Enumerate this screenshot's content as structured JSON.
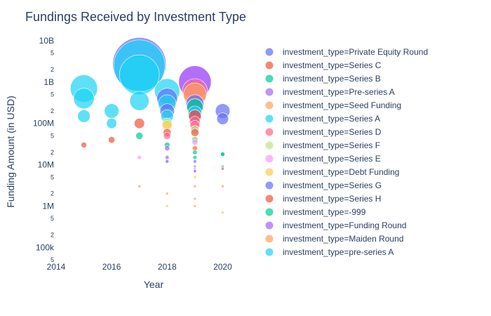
{
  "chart_data": {
    "type": "scatter",
    "title": "Fundings Received by Investment Type",
    "xlabel": "Year",
    "ylabel": "Funding Amount (in USD)",
    "x_axis": {
      "range": [
        2014,
        2021
      ],
      "ticks": [
        2014,
        2016,
        2018,
        2020
      ],
      "tick_labels": [
        "2014",
        "2016",
        "2018",
        "2020"
      ]
    },
    "y_axis": {
      "scale": "log",
      "range": [
        50000,
        10000000000
      ],
      "major_ticks": [
        100000,
        1000000,
        10000000,
        100000000,
        1000000000,
        10000000000
      ],
      "major_labels": [
        "100k",
        "1M",
        "10M",
        "100M",
        "1B",
        "10B"
      ],
      "minor_ticks": [
        50000,
        200000,
        500000,
        2000000,
        5000000,
        20000000,
        50000000,
        200000000,
        500000000,
        2000000000,
        5000000000
      ],
      "minor_labels": [
        "5",
        "2",
        "5",
        "2",
        "5",
        "2",
        "5",
        "2",
        "5",
        "2",
        "5"
      ]
    },
    "legend_position": "right",
    "grid": false,
    "bubble_size_encodes": "Funding Amount (in USD)",
    "series": [
      {
        "name": "investment_type=Private Equity Round",
        "color": "#636efa",
        "points": [
          [
            2017,
            2700000000
          ],
          [
            2018,
            400000000
          ],
          [
            2018,
            200000000
          ],
          [
            2019,
            150000000
          ],
          [
            2020,
            200000000
          ],
          [
            2020,
            130000000
          ],
          [
            2019,
            250000000
          ]
        ]
      },
      {
        "name": "investment_type=Series C",
        "color": "#ef553b",
        "points": [
          [
            2017,
            100000000
          ],
          [
            2018,
            60000000
          ],
          [
            2019,
            60000000
          ],
          [
            2019,
            25000000
          ],
          [
            2015,
            30000000
          ],
          [
            2016,
            40000000
          ],
          [
            2019,
            7000000
          ]
        ]
      },
      {
        "name": "investment_type=Series B",
        "color": "#00cc96",
        "points": [
          [
            2017,
            50000000
          ],
          [
            2018,
            30000000
          ],
          [
            2019,
            250000000
          ],
          [
            2019,
            15000000
          ],
          [
            2020,
            18000000
          ],
          [
            2019,
            40000000
          ]
        ]
      },
      {
        "name": "investment_type=Pre-series A",
        "color": "#ab63fa",
        "points": [
          [
            2019,
            1000000000
          ],
          [
            2018,
            25000000
          ],
          [
            2019,
            12000000
          ],
          [
            2019,
            7000000
          ]
        ]
      },
      {
        "name": "investment_type=Seed Funding",
        "color": "#ffa15a",
        "points": [
          [
            2019,
            500000000
          ],
          [
            2018,
            2000000
          ],
          [
            2017,
            3000000
          ],
          [
            2019,
            3000000
          ],
          [
            2019,
            1000000
          ],
          [
            2020,
            3000000
          ],
          [
            2019,
            1500000
          ]
        ]
      },
      {
        "name": "investment_type=Series A",
        "color": "#19d3f3",
        "points": [
          [
            2015,
            700000000
          ],
          [
            2015,
            400000000
          ],
          [
            2016,
            200000000
          ],
          [
            2017,
            2500000000
          ],
          [
            2017,
            1500000000
          ],
          [
            2018,
            600000000
          ],
          [
            2018,
            300000000
          ],
          [
            2016,
            100000000
          ],
          [
            2015,
            150000000
          ],
          [
            2017,
            350000000
          ],
          [
            2018,
            150000000
          ],
          [
            2019,
            180000000
          ]
        ]
      },
      {
        "name": "investment_type=Series D",
        "color": "#ff6692",
        "points": [
          [
            2019,
            110000000
          ],
          [
            2019,
            600000000
          ],
          [
            2019,
            90000000
          ],
          [
            2018,
            50000000
          ]
        ]
      },
      {
        "name": "investment_type=Series F",
        "color": "#b6e880",
        "points": [
          [
            2019,
            70000000
          ],
          [
            2018,
            100000000
          ],
          [
            2019,
            40000000
          ]
        ]
      },
      {
        "name": "investment_type=Series E",
        "color": "#ff97ff",
        "points": [
          [
            2019,
            35000000
          ],
          [
            2017,
            15000000
          ],
          [
            2019,
            8000000
          ]
        ]
      },
      {
        "name": "investment_type=Debt Funding",
        "color": "#fecb52",
        "points": [
          [
            2018,
            90000000
          ],
          [
            2019,
            5000000
          ],
          [
            2020,
            700000
          ],
          [
            2018,
            1000000
          ]
        ]
      },
      {
        "name": "investment_type=Series G",
        "color": "#636efa",
        "points": [
          [
            2019,
            300000000
          ],
          [
            2018,
            12000000
          ]
        ]
      },
      {
        "name": "investment_type=Series H",
        "color": "#ef553b",
        "points": [
          [
            2019,
            150000000
          ],
          [
            2020,
            8000000
          ]
        ]
      },
      {
        "name": "investment_type=-999",
        "color": "#00cc96",
        "points": [
          [
            2020,
            18000000
          ],
          [
            2019,
            20000000
          ]
        ]
      },
      {
        "name": "investment_type=Funding Round",
        "color": "#ab63fa",
        "points": [
          [
            2019,
            1000000000
          ],
          [
            2018,
            15000000
          ]
        ]
      },
      {
        "name": "investment_type=Maiden Round",
        "color": "#ffa15a",
        "points": [
          [
            2019,
            25000000
          ]
        ]
      },
      {
        "name": "investment_type=pre-series A",
        "color": "#19d3f3",
        "points": [
          [
            2020,
            9000000
          ],
          [
            2019,
            9000000
          ]
        ]
      }
    ]
  }
}
